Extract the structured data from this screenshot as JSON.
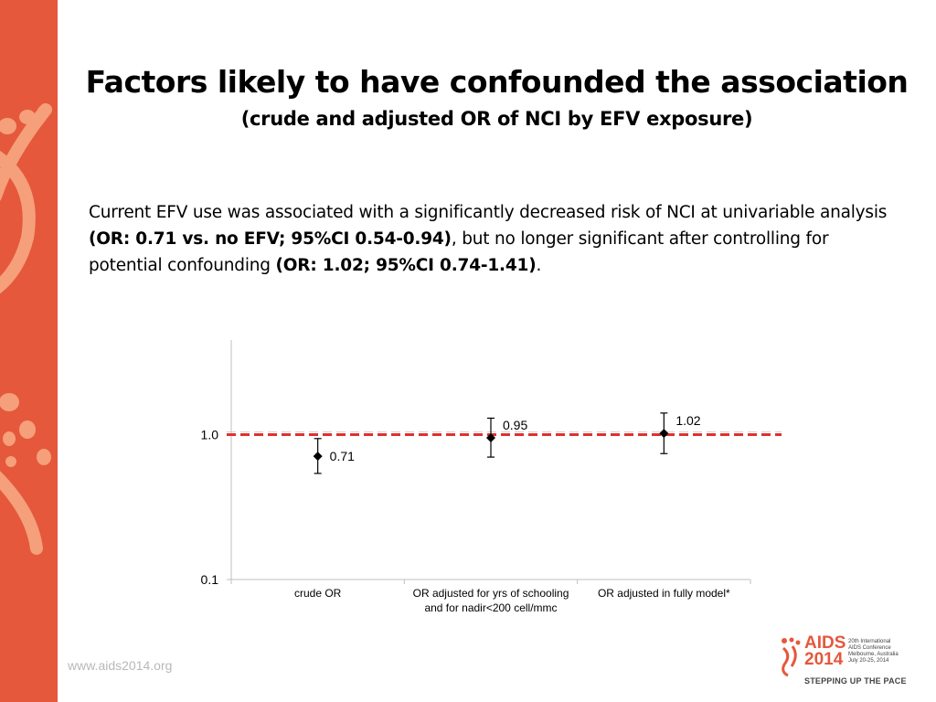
{
  "slide": {
    "title": "Factors likely to have confounded the association",
    "subtitle": "(crude and adjusted OR of NCI by EFV exposure)",
    "paragraph": [
      {
        "text": "Current EFV use was associated with a significantly decreased risk of NCI at univariable analysis ",
        "bold": false
      },
      {
        "text": "(OR: 0.71 vs. no EFV; 95%CI 0.54-0.94)",
        "bold": true
      },
      {
        "text": ", but no longer significant after controlling for potential confounding ",
        "bold": false
      },
      {
        "text": "(OR: 1.02; 95%CI 0.74-1.41)",
        "bold": true
      },
      {
        "text": ".",
        "bold": false
      }
    ],
    "footer_url": "www.aids2014.org",
    "logo": {
      "name": "AIDS 2014",
      "line1": "AIDS",
      "line2": "2014",
      "small_lines": [
        "20th International",
        "AIDS Conference",
        "Melbourne, Australia",
        "July 20-25, 2014"
      ],
      "tagline": "STEPPING UP THE PACE"
    }
  },
  "colors": {
    "accent": "#e5583c",
    "reference_line": "#e03030",
    "decor": "#f5a07a"
  },
  "chart_data": {
    "type": "scatter",
    "title": "",
    "xlabel": "",
    "ylabel": "",
    "yscale": "log",
    "ylim": [
      0.1,
      4.5
    ],
    "y_ticks": [
      {
        "value": 0.1,
        "label": "0.1"
      },
      {
        "value": 1.0,
        "label": "1.0"
      }
    ],
    "reference_line": 1.0,
    "grid": false,
    "legend": "none",
    "categories": [
      [
        "crude OR"
      ],
      [
        "OR adjusted for yrs of schooling",
        "and for nadir<200 cell/mmc"
      ],
      [
        "OR adjusted in fully model*"
      ]
    ],
    "points": [
      {
        "or": 0.71,
        "ci_low": 0.54,
        "ci_high": 0.94,
        "label": "0.71"
      },
      {
        "or": 0.95,
        "ci_low": 0.7,
        "ci_high": 1.3,
        "label": "0.95"
      },
      {
        "or": 1.02,
        "ci_low": 0.74,
        "ci_high": 1.41,
        "label": "1.02"
      }
    ]
  }
}
